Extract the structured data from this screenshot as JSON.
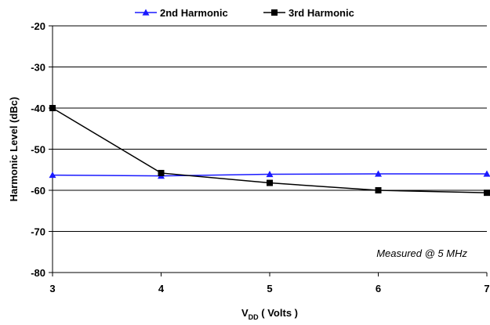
{
  "chart_data": {
    "type": "line",
    "title": "",
    "xlabel": {
      "main": "V",
      "sub": "DD",
      "rest": " ( Volts )"
    },
    "ylabel": "Harmonic Level (dBc)",
    "xlim": [
      3,
      7
    ],
    "ylim": [
      -80,
      -20
    ],
    "x_ticks": [
      3,
      4,
      5,
      6,
      7
    ],
    "y_ticks": [
      -80,
      -70,
      -60,
      -50,
      -40,
      -30,
      -20
    ],
    "x_tick_labels": [
      "3",
      "4",
      "5",
      "6",
      "7"
    ],
    "y_tick_labels": [
      "-80",
      "-70",
      "-60",
      "-50",
      "-40",
      "-30",
      "-20"
    ],
    "grid": "horizontal",
    "legend_position": "top",
    "annotation": "Measured @ 5 MHz",
    "series": [
      {
        "name": "2nd Harmonic",
        "color": "#1a1aff",
        "marker": "triangle",
        "x": [
          3,
          4,
          5,
          6,
          7
        ],
        "values": [
          -56.3,
          -56.5,
          -56.1,
          -56.0,
          -56.0
        ]
      },
      {
        "name": "3rd Harmonic",
        "color": "#000000",
        "marker": "square",
        "x": [
          3,
          4,
          5,
          6,
          7
        ],
        "values": [
          -40.0,
          -55.8,
          -58.2,
          -60.0,
          -60.6
        ]
      }
    ]
  }
}
